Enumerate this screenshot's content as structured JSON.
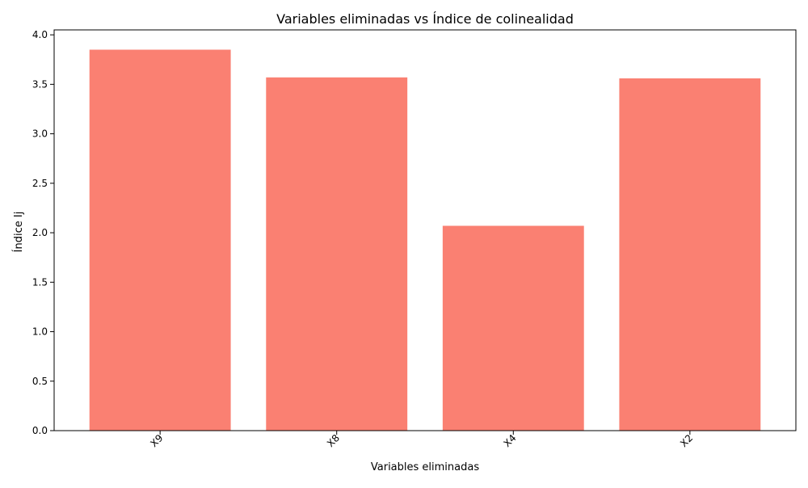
{
  "chart_data": {
    "type": "bar",
    "title": "Variables eliminadas vs Índice de colinealidad",
    "xlabel": "Variables eliminadas",
    "ylabel": "Índice Ij",
    "categories": [
      "X9",
      "X8",
      "X4",
      "X2"
    ],
    "values": [
      3.85,
      3.57,
      2.07,
      3.56
    ],
    "ylim": [
      0,
      4.05
    ],
    "yticks": [
      "0.0",
      "0.5",
      "1.0",
      "1.5",
      "2.0",
      "2.5",
      "3.0",
      "3.5",
      "4.0"
    ],
    "bar_color": "#fa8072",
    "grid": false,
    "xtick_rotation": "45"
  }
}
